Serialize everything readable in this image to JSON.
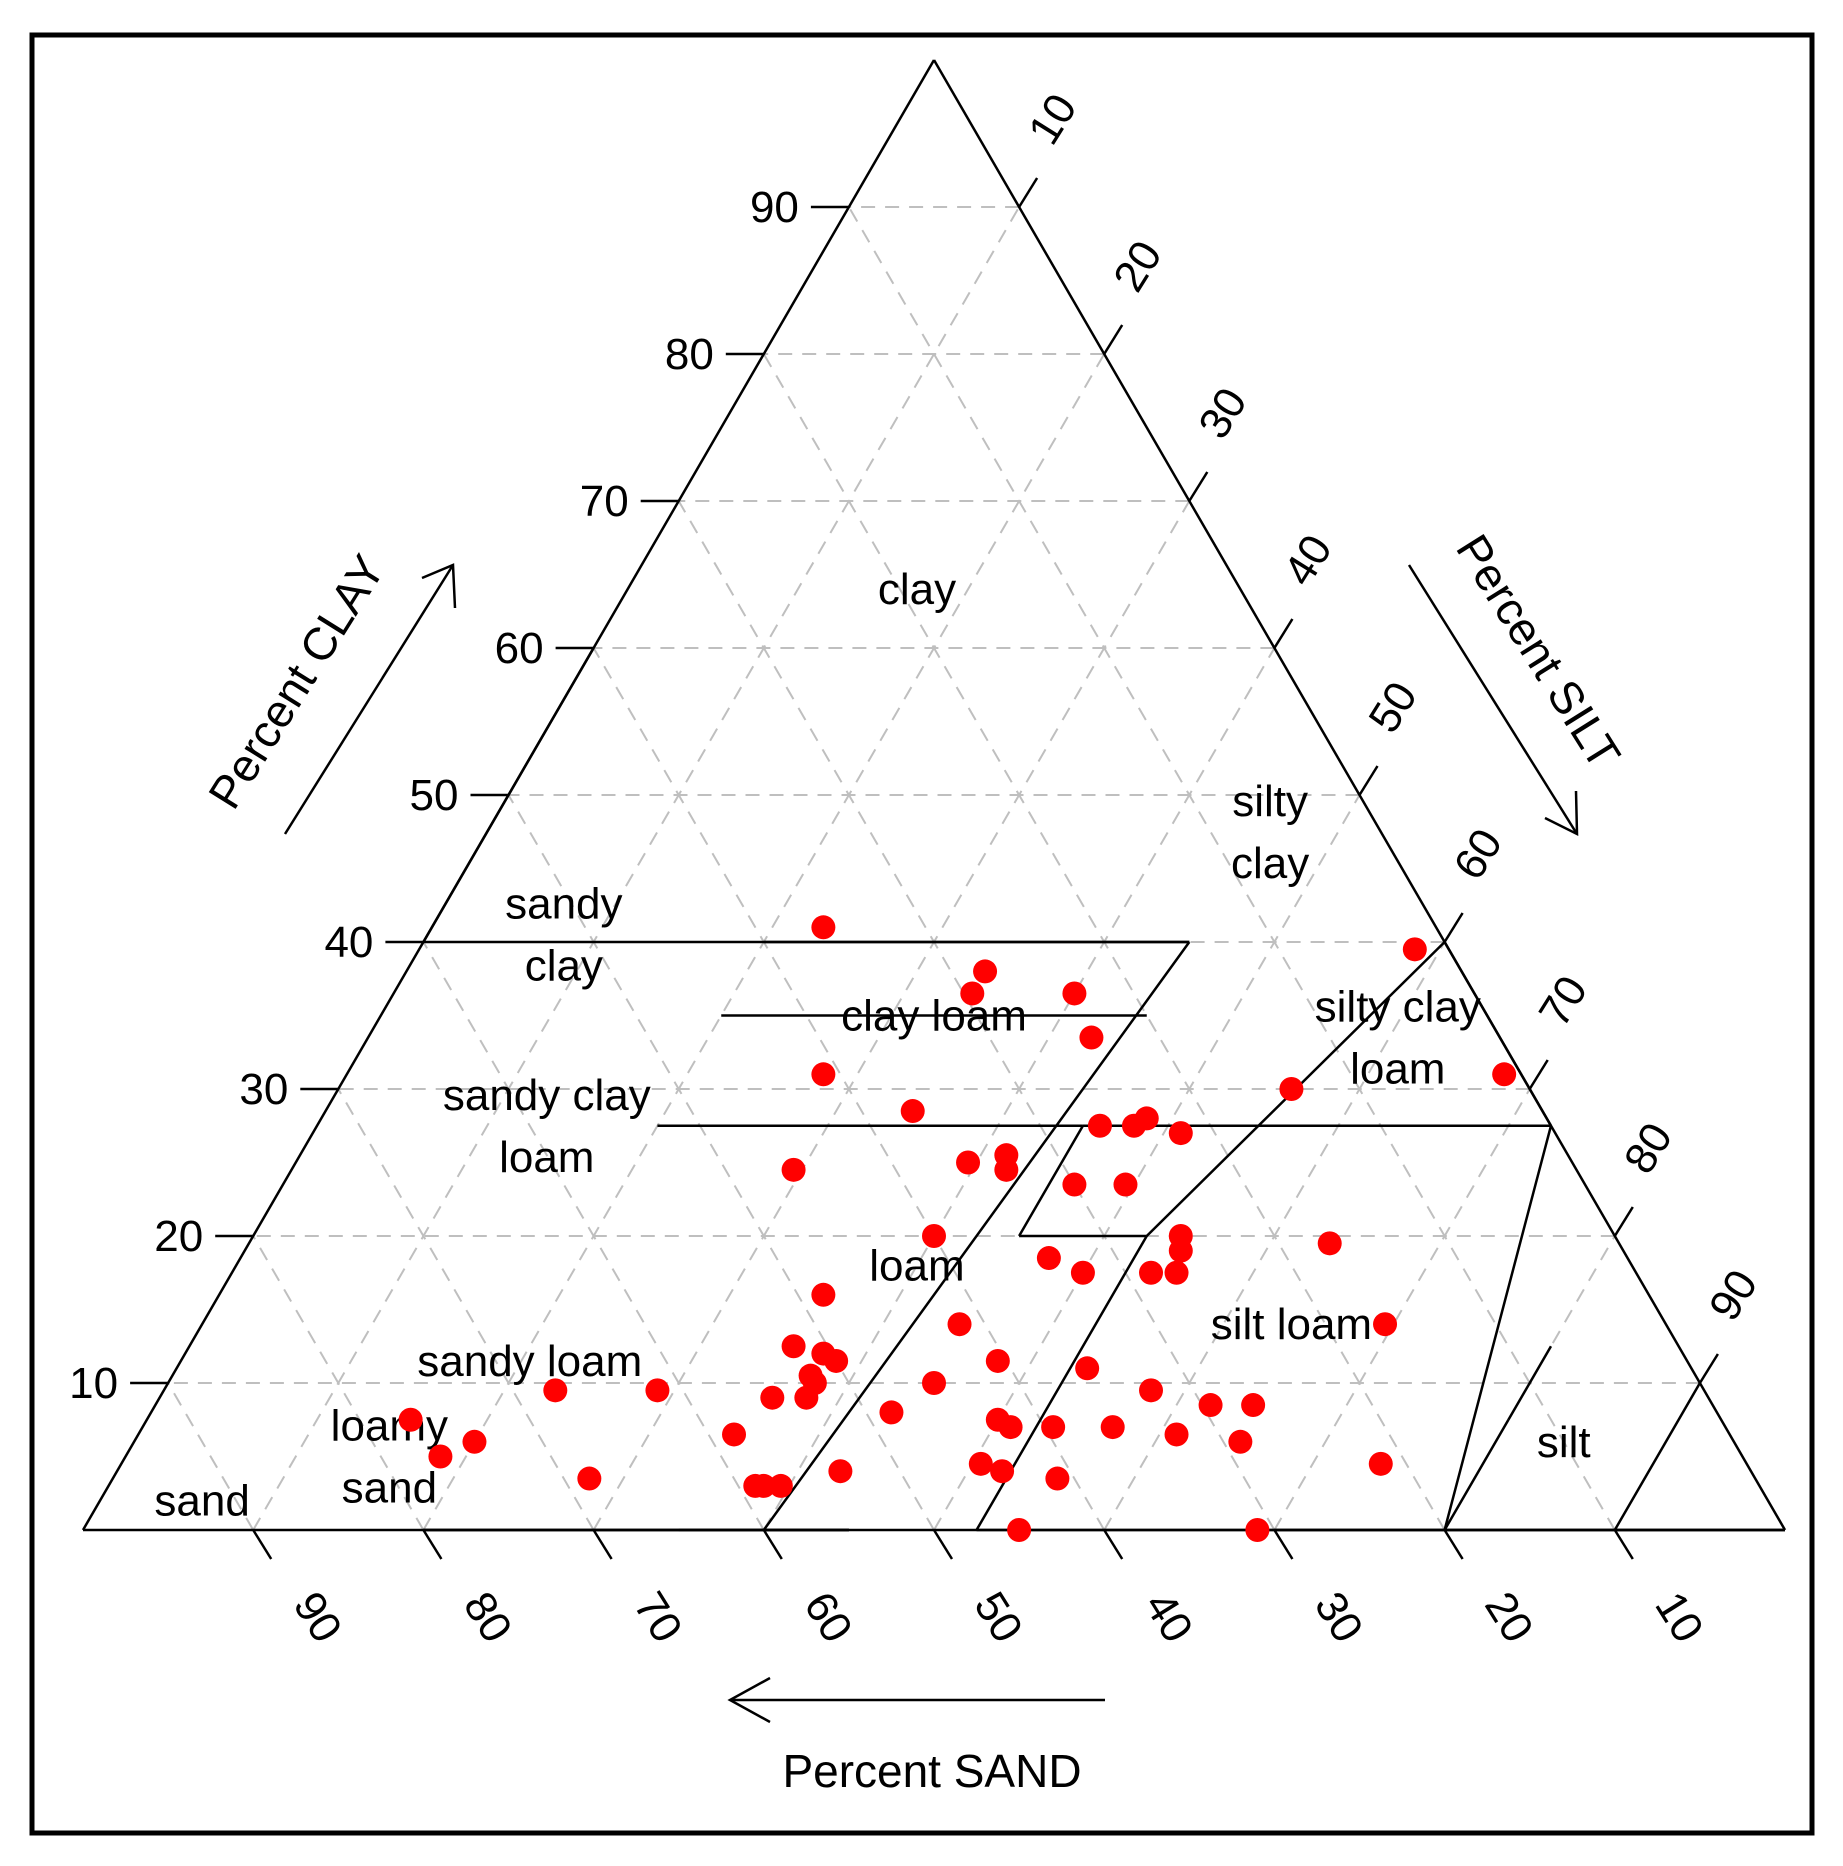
{
  "chart_data": {
    "type": "scatter",
    "subtype": "ternary-soil-texture-triangle",
    "axes": {
      "clay": {
        "title": "Percent CLAY",
        "ticks": [
          "10",
          "20",
          "30",
          "40",
          "50",
          "60",
          "70",
          "80",
          "90"
        ]
      },
      "silt": {
        "title": "Percent SILT",
        "ticks": [
          "10",
          "20",
          "30",
          "40",
          "50",
          "60",
          "70",
          "80",
          "90"
        ]
      },
      "sand": {
        "title": "Percent SAND",
        "ticks": [
          "90",
          "80",
          "70",
          "60",
          "50",
          "40",
          "30",
          "20",
          "10"
        ]
      }
    },
    "grid": true,
    "regions": [
      {
        "name": "clay",
        "lines": [
          "clay"
        ],
        "clay": 64,
        "sand": 19
      },
      {
        "name": "sandy clay",
        "lines": [
          "sandy",
          "clay"
        ],
        "clay": 40.5,
        "sand": 51.5
      },
      {
        "name": "sandy clay loam",
        "lines": [
          "sandy clay",
          "loam"
        ],
        "clay": 27.5,
        "sand": 59
      },
      {
        "name": "sandy loam",
        "lines": [
          "sandy loam"
        ],
        "clay": 11.5,
        "sand": 68
      },
      {
        "name": "loamy sand",
        "lines": [
          "loamy",
          "sand"
        ],
        "clay": 5,
        "sand": 79.5
      },
      {
        "name": "sand",
        "lines": [
          "sand"
        ],
        "clay": 2,
        "sand": 92
      },
      {
        "name": "clay loam",
        "lines": [
          "clay loam"
        ],
        "clay": 35,
        "sand": 32.5
      },
      {
        "name": "loam",
        "lines": [
          "loam"
        ],
        "clay": 18,
        "sand": 42
      },
      {
        "name": "silty clay",
        "lines": [
          "silty",
          "clay"
        ],
        "clay": 47.5,
        "sand": 6.5
      },
      {
        "name": "silty clay loam",
        "lines": [
          "silty clay",
          "loam"
        ],
        "clay": 33.5,
        "sand": 6
      },
      {
        "name": "silt loam",
        "lines": [
          "silt loam"
        ],
        "clay": 14,
        "sand": 22
      },
      {
        "name": "silt",
        "lines": [
          "silt"
        ],
        "clay": 6,
        "sand": 10
      }
    ],
    "boundaries": [
      [
        [
          0,
          45,
          55
        ],
        [
          0,
          20,
          80
        ]
      ],
      [
        [
          0,
          35,
          65
        ],
        [
          0,
          45,
          55
        ]
      ],
      [
        [
          0,
          35,
          65
        ],
        [
          0,
          20,
          80
        ]
      ],
      [
        [
          0,
          45,
          55
        ],
        [
          0,
          35,
          65
        ]
      ],
      [
        [
          40,
          45,
          15
        ],
        [
          0,
          40,
          60
        ]
      ],
      [
        [
          40,
          45,
          15
        ],
        [
          40,
          0,
          60
        ]
      ],
      [
        [
          40,
          20,
          40
        ],
        [
          40,
          45,
          15
        ]
      ],
      [
        [
          60,
          0,
          40
        ],
        [
          40,
          0,
          60
        ]
      ],
      [
        [
          35,
          20,
          45
        ],
        [
          35,
          45,
          20
        ]
      ],
      [
        [
          20,
          45,
          35
        ],
        [
          27.5,
          45,
          27.5
        ]
      ],
      [
        [
          20,
          45,
          35
        ],
        [
          20,
          52.5,
          27.5
        ]
      ],
      [
        [
          27.5,
          45,
          27.5
        ],
        [
          27.5,
          72.5,
          0
        ]
      ],
      [
        [
          27.5,
          20,
          52.5
        ],
        [
          27.5,
          45,
          27.5
        ]
      ],
      [
        [
          20,
          52.5,
          27.5
        ],
        [
          0,
          52.5,
          47.5
        ]
      ],
      [
        [
          27.5,
          72.5,
          0
        ],
        [
          40,
          60,
          0
        ]
      ],
      [
        [
          40,
          60,
          0
        ],
        [
          20,
          52.5,
          27.5
        ]
      ],
      [
        [
          0,
          85,
          15
        ],
        [
          0,
          70,
          30
        ]
      ],
      [
        [
          12.5,
          80,
          7.5
        ],
        [
          7.5,
          80,
          12.5
        ]
      ],
      [
        [
          7.5,
          80,
          12.5
        ],
        [
          0,
          80,
          20
        ]
      ],
      [
        [
          27.5,
          72.5,
          0
        ],
        [
          0,
          80,
          20
        ]
      ],
      [
        [
          0,
          90,
          10
        ],
        [
          10,
          90,
          0
        ]
      ],
      [
        [
          0,
          100,
          0
        ],
        [
          0,
          85,
          15
        ]
      ],
      [
        [
          0,
          100,
          0
        ],
        [
          0,
          52.5,
          47.5
        ]
      ],
      [
        [
          0,
          0,
          100
        ],
        [
          0,
          100,
          0
        ]
      ],
      [
        [
          100,
          0,
          0
        ],
        [
          0,
          0,
          100
        ]
      ],
      [
        [
          100,
          0,
          0
        ],
        [
          0,
          100,
          0
        ]
      ]
    ],
    "points": [
      {
        "clay": 41,
        "sand": 36
      },
      {
        "clay": 39.5,
        "sand": 2
      },
      {
        "clay": 38,
        "sand": 28
      },
      {
        "clay": 36.5,
        "sand": 29.5
      },
      {
        "clay": 36.5,
        "sand": 23.5
      },
      {
        "clay": 33.5,
        "sand": 24
      },
      {
        "clay": 31,
        "sand": 41
      },
      {
        "clay": 31,
        "sand": 1
      },
      {
        "clay": 30,
        "sand": 14
      },
      {
        "clay": 28.5,
        "sand": 37
      },
      {
        "clay": 28,
        "sand": 23.5
      },
      {
        "clay": 27.5,
        "sand": 24.5
      },
      {
        "clay": 27.5,
        "sand": 26.5
      },
      {
        "clay": 27,
        "sand": 22
      },
      {
        "clay": 25.5,
        "sand": 33
      },
      {
        "clay": 25,
        "sand": 35.5
      },
      {
        "clay": 24.5,
        "sand": 33.5
      },
      {
        "clay": 24.5,
        "sand": 46
      },
      {
        "clay": 23.5,
        "sand": 30
      },
      {
        "clay": 23.5,
        "sand": 27
      },
      {
        "clay": 20,
        "sand": 40
      },
      {
        "clay": 20,
        "sand": 25.5
      },
      {
        "clay": 19.5,
        "sand": 17
      },
      {
        "clay": 19,
        "sand": 26
      },
      {
        "clay": 18.5,
        "sand": 34
      },
      {
        "clay": 17.5,
        "sand": 32.5
      },
      {
        "clay": 17.5,
        "sand": 28.5
      },
      {
        "clay": 17.5,
        "sand": 27
      },
      {
        "clay": 16,
        "sand": 48.5
      },
      {
        "clay": 14,
        "sand": 41.5
      },
      {
        "clay": 14,
        "sand": 16.5
      },
      {
        "clay": 12.5,
        "sand": 52
      },
      {
        "clay": 12,
        "sand": 50.5
      },
      {
        "clay": 11.5,
        "sand": 40.5
      },
      {
        "clay": 11.5,
        "sand": 50
      },
      {
        "clay": 11,
        "sand": 35.5
      },
      {
        "clay": 10.5,
        "sand": 52
      },
      {
        "clay": 10,
        "sand": 45
      },
      {
        "clay": 10,
        "sand": 52
      },
      {
        "clay": 9.5,
        "sand": 67.5
      },
      {
        "clay": 9.5,
        "sand": 61.5
      },
      {
        "clay": 9.5,
        "sand": 32.5
      },
      {
        "clay": 9,
        "sand": 55
      },
      {
        "clay": 9,
        "sand": 53
      },
      {
        "clay": 8.5,
        "sand": 29.5
      },
      {
        "clay": 8.5,
        "sand": 27
      },
      {
        "clay": 8,
        "sand": 48.5
      },
      {
        "clay": 7.5,
        "sand": 42.5
      },
      {
        "clay": 7,
        "sand": 42
      },
      {
        "clay": 7,
        "sand": 39.5
      },
      {
        "clay": 7,
        "sand": 36
      },
      {
        "clay": 7.5,
        "sand": 77
      },
      {
        "clay": 6.5,
        "sand": 58.5
      },
      {
        "clay": 6.5,
        "sand": 32.5
      },
      {
        "clay": 6,
        "sand": 29
      },
      {
        "clay": 6,
        "sand": 74
      },
      {
        "clay": 5,
        "sand": 76.5
      },
      {
        "clay": 4.5,
        "sand": 21.5
      },
      {
        "clay": 4.5,
        "sand": 45
      },
      {
        "clay": 4,
        "sand": 44
      },
      {
        "clay": 4,
        "sand": 53.5
      },
      {
        "clay": 3.5,
        "sand": 68.5
      },
      {
        "clay": 3.5,
        "sand": 41
      },
      {
        "clay": 3,
        "sand": 59
      },
      {
        "clay": 3,
        "sand": 57.5
      },
      {
        "clay": 3,
        "sand": 58.5
      },
      {
        "clay": 0,
        "sand": 45
      },
      {
        "clay": 0,
        "sand": 31
      }
    ],
    "point_color": "#ff0000",
    "line_color": "#000000",
    "grid_color": "#bfbfbf"
  }
}
